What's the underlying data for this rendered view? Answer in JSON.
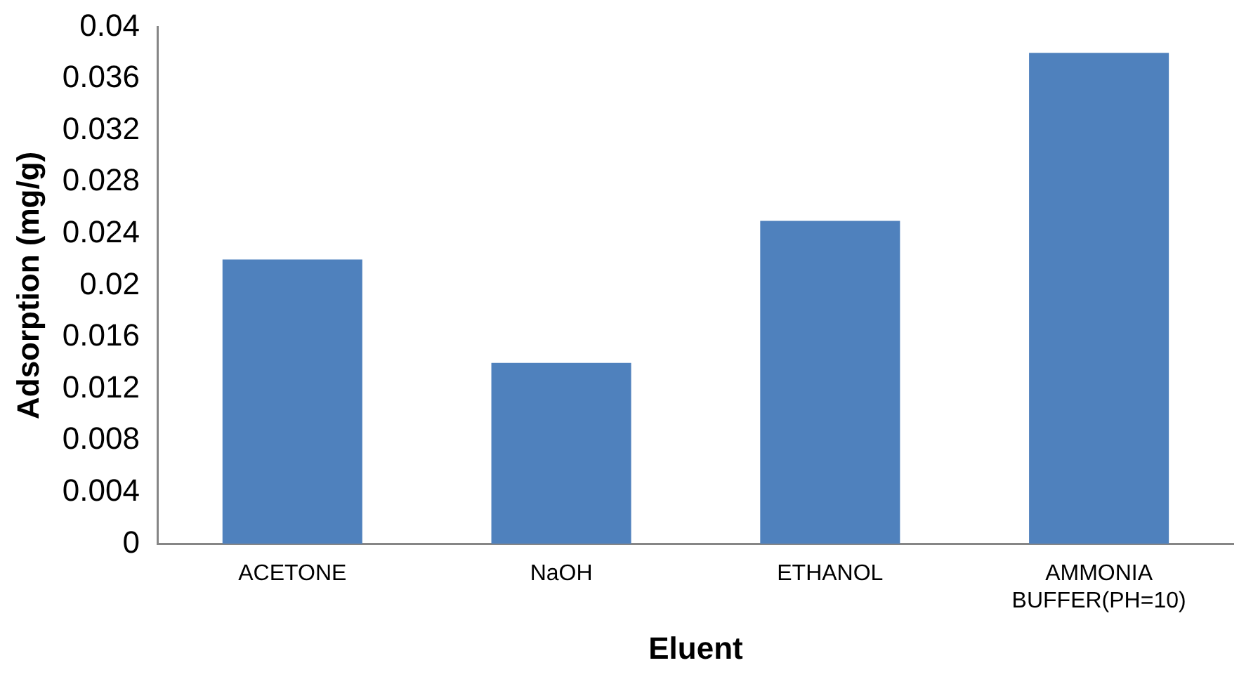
{
  "chart_data": {
    "type": "bar",
    "xlabel": "Eluent",
    "ylabel": "Adsorption (mg/g)",
    "categories": [
      "ACETONE",
      "NaOH",
      "ETHANOL",
      "AMMONIA BUFFER(PH=10)"
    ],
    "values": [
      0.022,
      0.014,
      0.025,
      0.038
    ],
    "color": "#4f81bd",
    "ylim": [
      0,
      0.04
    ],
    "yticks": [
      0,
      0.004,
      0.008,
      0.012,
      0.016,
      0.02,
      0.024,
      0.028,
      0.032,
      0.036,
      0.04
    ],
    "grid": false,
    "legend": false
  }
}
